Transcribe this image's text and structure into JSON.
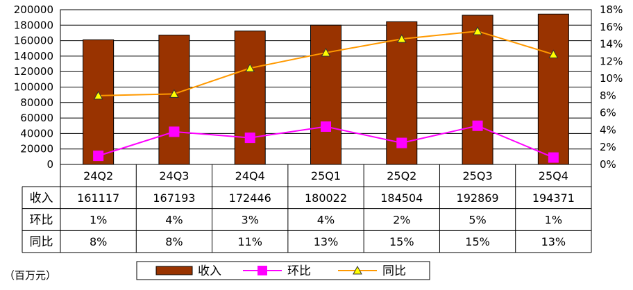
{
  "chart_data": {
    "type": "bar",
    "categories": [
      "24Q2",
      "24Q3",
      "24Q4",
      "25Q1",
      "25Q2",
      "25Q3",
      "25Q4"
    ],
    "series": [
      {
        "name": "收入",
        "type": "bar",
        "axis": "left",
        "values": [
          161117,
          167193,
          172446,
          180022,
          184504,
          192869,
          194371
        ],
        "color": "#993300"
      },
      {
        "name": "环比",
        "type": "line",
        "axis": "right",
        "values": [
          1.0,
          3.8,
          3.1,
          4.4,
          2.5,
          4.5,
          0.8
        ],
        "color": "#ff00ff",
        "marker": "square"
      },
      {
        "name": "同比",
        "type": "line",
        "axis": "right",
        "values": [
          8.0,
          8.2,
          11.2,
          13.0,
          14.6,
          15.5,
          12.8
        ],
        "color": "#ff9900",
        "marker": "triangle",
        "marker_fill": "#ffff00"
      }
    ],
    "ylim": [
      0,
      200000
    ],
    "y_ticks": [
      "200000",
      "180000",
      "160000",
      "140000",
      "120000",
      "100000",
      "80000",
      "60000",
      "40000",
      "20000",
      "0"
    ],
    "y2lim": [
      0,
      18
    ],
    "y2_ticks": [
      "18%",
      "16%",
      "14%",
      "12%",
      "10%",
      "8%",
      "6%",
      "4%",
      "2%",
      "0%"
    ],
    "unit_label": "（百万元）",
    "grid": true,
    "legend": "bottom",
    "table": {
      "rows": [
        {
          "label": "收入",
          "values": [
            "161117",
            "167193",
            "172446",
            "180022",
            "184504",
            "192869",
            "194371"
          ]
        },
        {
          "label": "环比",
          "values": [
            "1%",
            "4%",
            "3%",
            "4%",
            "2%",
            "5%",
            "1%"
          ]
        },
        {
          "label": "同比",
          "values": [
            "8%",
            "8%",
            "11%",
            "13%",
            "15%",
            "15%",
            "13%"
          ]
        }
      ]
    }
  }
}
